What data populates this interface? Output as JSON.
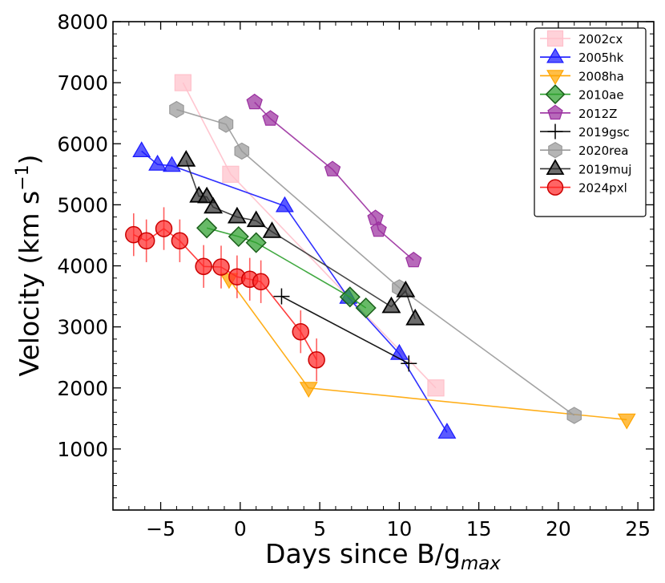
{
  "chart_data": {
    "type": "scatter",
    "xlabel": "Days since B/g",
    "xlabel_sub": "max",
    "ylabel": "Velocity (km s",
    "ylabel_sup": "−1",
    "ylabel_end": ")",
    "xlim": [
      -8,
      26
    ],
    "ylim": [
      0,
      8000
    ],
    "xticks": [
      -5,
      0,
      5,
      10,
      15,
      20,
      25
    ],
    "xtick_labels": [
      "−5",
      "0",
      "5",
      "10",
      "15",
      "20",
      "25"
    ],
    "yticks": [
      1000,
      2000,
      3000,
      4000,
      5000,
      6000,
      7000,
      8000
    ],
    "ytick_labels": [
      "1000",
      "2000",
      "3000",
      "4000",
      "5000",
      "6000",
      "7000",
      "8000"
    ],
    "legend_position": "top-right",
    "series": [
      {
        "name": "2002cx",
        "marker": "square",
        "color": "#ffc0cb",
        "points": [
          [
            -3.6,
            7000
          ],
          [
            -0.6,
            5500
          ],
          [
            12.3,
            2000
          ]
        ]
      },
      {
        "name": "2005hk",
        "marker": "triangle-up",
        "color": "#1a1aff",
        "points": [
          [
            -6.2,
            5880
          ],
          [
            -5.2,
            5660
          ],
          [
            -4.3,
            5640
          ],
          [
            2.8,
            4980
          ],
          [
            6.8,
            3480
          ],
          [
            10.0,
            2560
          ],
          [
            13.0,
            1270
          ]
        ]
      },
      {
        "name": "2008ha",
        "marker": "triangle-down",
        "color": "#ffa500",
        "points": [
          [
            -0.7,
            3780
          ],
          [
            4.3,
            2000
          ],
          [
            24.3,
            1480
          ]
        ]
      },
      {
        "name": "2010ae",
        "marker": "diamond",
        "color": "#2ca02c",
        "points": [
          [
            -2.1,
            4620
          ],
          [
            -0.1,
            4480
          ],
          [
            1.0,
            4380
          ],
          [
            6.9,
            3490
          ],
          [
            7.9,
            3310
          ]
        ]
      },
      {
        "name": "2012Z",
        "marker": "pentagon",
        "color": "#9b30a0",
        "points": [
          [
            0.9,
            6680
          ],
          [
            1.9,
            6410
          ],
          [
            5.8,
            5580
          ],
          [
            8.5,
            4780
          ],
          [
            8.7,
            4590
          ],
          [
            10.9,
            4090
          ]
        ]
      },
      {
        "name": "2019gsc",
        "marker": "plus",
        "color": "#000000",
        "points": [
          [
            2.6,
            3500
          ],
          [
            10.6,
            2400
          ]
        ]
      },
      {
        "name": "2020rea",
        "marker": "hexagon",
        "color": "#999999",
        "points": [
          [
            -4.0,
            6560
          ],
          [
            -0.9,
            6320
          ],
          [
            0.1,
            5880
          ],
          [
            10.0,
            3640
          ],
          [
            21.0,
            1550
          ]
        ]
      },
      {
        "name": "2019muj",
        "marker": "triangle-up",
        "color": "#1c1c1c",
        "points": [
          [
            -3.4,
            5730
          ],
          [
            -2.6,
            5140
          ],
          [
            -2.1,
            5130
          ],
          [
            -1.7,
            4960
          ],
          [
            -0.2,
            4800
          ],
          [
            1.0,
            4740
          ],
          [
            2.0,
            4560
          ],
          [
            9.5,
            3330
          ],
          [
            10.4,
            3590
          ],
          [
            11.0,
            3130
          ]
        ]
      },
      {
        "name": "2024pxl",
        "marker": "circle",
        "color": "#ff2a2a",
        "points": [
          [
            -6.7,
            4510
          ],
          [
            -5.9,
            4410
          ],
          [
            -4.8,
            4610
          ],
          [
            -3.8,
            4410
          ],
          [
            -2.3,
            3990
          ],
          [
            -1.2,
            3980
          ],
          [
            -0.2,
            3820
          ],
          [
            0.6,
            3780
          ],
          [
            1.3,
            3740
          ],
          [
            3.8,
            2920
          ],
          [
            4.8,
            2460
          ]
        ],
        "yerr": 350
      }
    ]
  }
}
